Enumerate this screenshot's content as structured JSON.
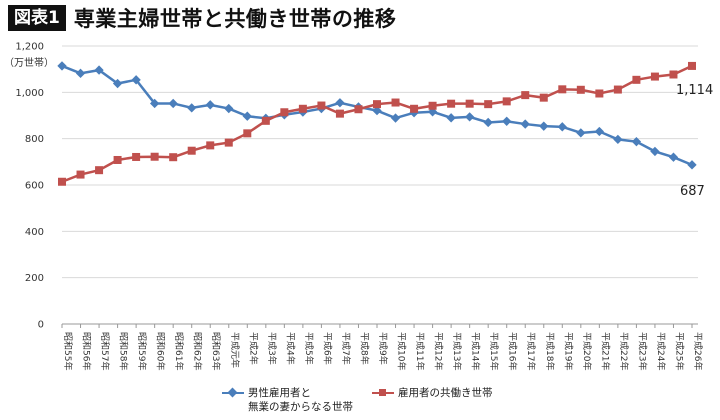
{
  "header": {
    "figure_label": "図表1",
    "title": "専業主婦世帯と共働き世帯の推移"
  },
  "chart_data": {
    "type": "line",
    "unit_label": "（万世帯）",
    "ylim": [
      0,
      1200
    ],
    "yticks": [
      "0",
      "200",
      "400",
      "600",
      "800",
      "1,000",
      "1,200"
    ],
    "ytick_values": [
      0,
      200,
      400,
      600,
      800,
      1000,
      1200
    ],
    "grid": true,
    "legend_position": "bottom",
    "categories": [
      "昭和55年",
      "昭和56年",
      "昭和57年",
      "昭和58年",
      "昭和59年",
      "昭和60年",
      "昭和61年",
      "昭和62年",
      "昭和63年",
      "平成元年",
      "平成2年",
      "平成3年",
      "平成4年",
      "平成5年",
      "平成6年",
      "平成7年",
      "平成8年",
      "平成9年",
      "平成10年",
      "平成11年",
      "平成12年",
      "平成13年",
      "平成14年",
      "平成15年",
      "平成16年",
      "平成17年",
      "平成18年",
      "平成19年",
      "平成20年",
      "平成21年",
      "平成22年",
      "平成23年",
      "平成24年",
      "平成25年",
      "平成26年"
    ],
    "series": [
      {
        "name_line1": "男性雇用者と",
        "name_line2": "無業の妻からなる世帯",
        "color": "#4a7ebb",
        "marker": "diamond",
        "values": [
          1114,
          1082,
          1096,
          1038,
          1054,
          952,
          952,
          933,
          946,
          930,
          897,
          888,
          903,
          915,
          930,
          955,
          937,
          921,
          889,
          912,
          916,
          890,
          894,
          870,
          875,
          863,
          854,
          851,
          825,
          831,
          797,
          787,
          745,
          720,
          687
        ],
        "end_label": "687"
      },
      {
        "name": "雇用者の共働き世帯",
        "color": "#c0504d",
        "marker": "square",
        "values": [
          614,
          645,
          664,
          708,
          721,
          722,
          720,
          748,
          771,
          783,
          823,
          877,
          914,
          929,
          943,
          908,
          927,
          949,
          956,
          929,
          942,
          951,
          951,
          949,
          961,
          988,
          977,
          1013,
          1011,
          995,
          1012,
          1054,
          1068,
          1077,
          1114
        ],
        "end_label": "1,114"
      }
    ]
  }
}
